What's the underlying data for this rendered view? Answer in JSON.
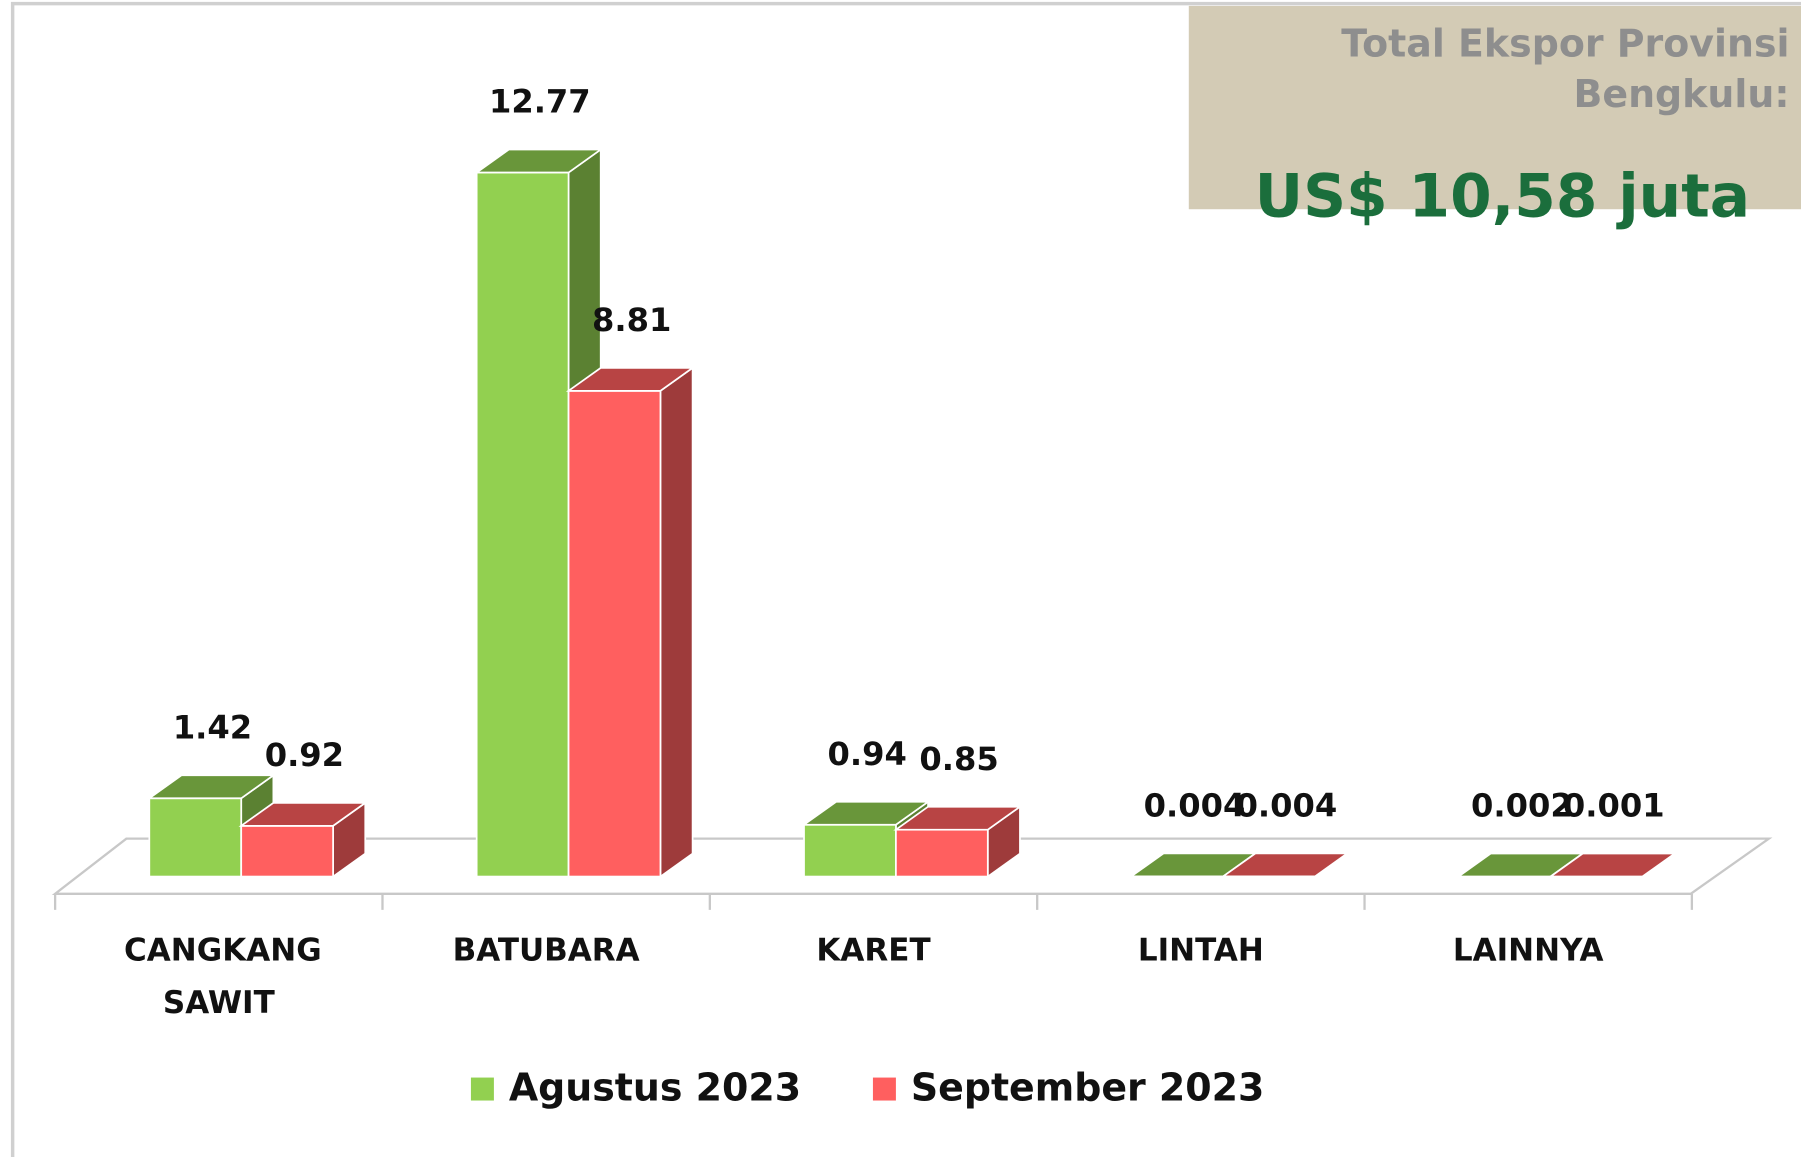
{
  "chart_data": {
    "type": "bar",
    "categories": [
      "CANGKANG SAWIT",
      "BATUBARA",
      "KARET",
      "LINTAH",
      "LAINNYA"
    ],
    "series": [
      {
        "name": "Agustus 2023",
        "color": "#92d050",
        "values": [
          1.42,
          12.77,
          0.94,
          0.004,
          0.002
        ]
      },
      {
        "name": "September 2023",
        "color": "#ff5f5f",
        "values": [
          0.92,
          8.81,
          0.85,
          0.004,
          0.001
        ]
      }
    ],
    "annotation": {
      "heading": "Total Ekspor Provinsi Bengkulu:",
      "value": "US$ 10,58 juta"
    }
  }
}
